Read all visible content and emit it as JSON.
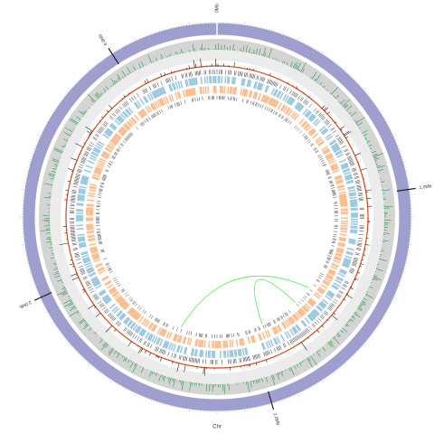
{
  "chart_data": {
    "type": "circos",
    "axis_label": "Chr",
    "xlim": [
      0,
      4.4
    ],
    "xticks": [
      {
        "value": 0,
        "label": "0Mb"
      },
      {
        "value": 1,
        "label": "1.0Mb"
      },
      {
        "value": 2,
        "label": "2.0Mb"
      },
      {
        "value": 3,
        "label": "3.0Mb"
      },
      {
        "value": 4,
        "label": "4.0Mb"
      }
    ],
    "ring_color": "#9e9ecf",
    "link_color": "#66ee66",
    "links": [
      {
        "source": 2.42,
        "target": 1.56
      },
      {
        "source": 1.92,
        "target": 1.68
      }
    ]
  }
}
